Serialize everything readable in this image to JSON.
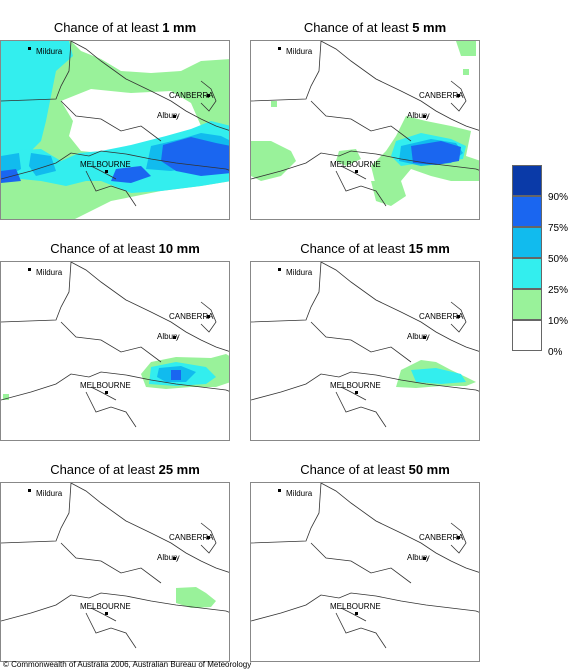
{
  "panels": [
    {
      "prefix": "Chance of at least ",
      "amount": "1 mm"
    },
    {
      "prefix": "Chance of at least ",
      "amount": "5 mm"
    },
    {
      "prefix": "Chance of at least ",
      "amount": "10 mm"
    },
    {
      "prefix": "Chance of at least ",
      "amount": "15 mm"
    },
    {
      "prefix": "Chance of at least ",
      "amount": "25 mm"
    },
    {
      "prefix": "Chance of at least ",
      "amount": "50 mm"
    }
  ],
  "places": {
    "mildura": "Mildura",
    "canberra": "CANBERRA",
    "albury": "Albury",
    "melbourne": "MELBOURNE"
  },
  "legend": {
    "labels": [
      "90%",
      "75%",
      "50%",
      "25%",
      "10%",
      "0%"
    ],
    "colors": [
      "#0a3aa8",
      "#1a66f0",
      "#11bbee",
      "#33eeee",
      "#99f29a",
      "#ffffff"
    ]
  },
  "copyright": "© Commonwealth of Australia 2006, Australian Bureau of Meteorology"
}
